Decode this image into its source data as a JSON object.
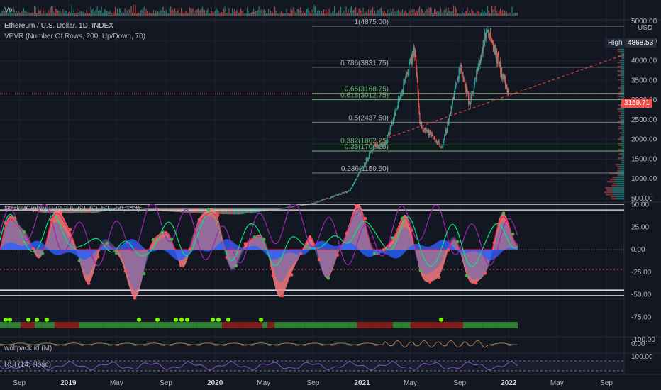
{
  "header": {
    "vol_label": "Vol",
    "symbol": "Ethereum / U.S. Dollar, 1D, INDEX",
    "indicator_vpvr": "VPVR (Number Of Rows, 200, Up/Down, 70)",
    "indicator_mcb": "MarketCipher B (2,2,6, 60, 60, 53, -60, -53)",
    "indicator_wolfpack": "wolfpack id (M)",
    "indicator_rsi": "RSI (14, close)"
  },
  "currency": "USD",
  "high_tag": {
    "label": "High",
    "value": "4868.53"
  },
  "last_price": "3159.71",
  "colors": {
    "background": "#131722",
    "grid": "#1e222d",
    "text": "#b2b5be",
    "up": "#26a69a",
    "down": "#ef5350",
    "fib_green": "#66bb6a",
    "trendline": "#e53935",
    "mcb_pink": "#f77c80",
    "mcb_blue": "#2962ff",
    "mcb_green": "#00e676",
    "mcb_purple": "#9c27b0",
    "rsi": "#7e57c2",
    "high_tag_bg": "#1e2538",
    "last_price_bg": "#ef5350"
  },
  "chart_data": [
    {
      "type": "candlestick",
      "title": "Ethereum / U.S. Dollar, 1D, INDEX",
      "x_tick_labels": [
        "Sep",
        "2019",
        "May",
        "Sep",
        "2020",
        "May",
        "Sep",
        "2021",
        "May",
        "Sep",
        "2022",
        "May",
        "Sep"
      ],
      "y_tick_labels": [
        "5000.00",
        "4500.00",
        "4000.00",
        "3500.00",
        "3000.00",
        "2500.00",
        "2000.00",
        "1500.00",
        "1000.00",
        "500.00"
      ],
      "ylim": [
        500,
        5000
      ],
      "price_path": {
        "dates": [
          "2018-08",
          "2018-11",
          "2019-03",
          "2019-06",
          "2019-09",
          "2019-12",
          "2020-03",
          "2020-06",
          "2020-09",
          "2020-12",
          "2021-01",
          "2021-02",
          "2021-03",
          "2021-05-12",
          "2021-05-25",
          "2021-07-20",
          "2021-09-03",
          "2021-09-25",
          "2021-11-10",
          "2021-12-05",
          "2021-12-31"
        ],
        "values": [
          300,
          150,
          140,
          300,
          190,
          130,
          110,
          230,
          380,
          700,
          1300,
          1800,
          1900,
          4300,
          2400,
          1800,
          3900,
          2900,
          4868,
          4000,
          3160
        ]
      },
      "fibonacci_levels": [
        {
          "label": "1(4875.00)",
          "value": 4875.0
        },
        {
          "label": "0.786(3831.75)",
          "value": 3831.75
        },
        {
          "label": "0.65(3168.75)",
          "value": 3168.75
        },
        {
          "label": "0.618(3012.75)",
          "value": 3012.75
        },
        {
          "label": "0.5(2437.50)",
          "value": 2437.5
        },
        {
          "label": "0.382(1862.25)",
          "value": 1862.25
        },
        {
          "label": "0.35(1706.25)",
          "value": 1706.25
        },
        {
          "label": "0.236(1150.50)",
          "value": 1150.5
        }
      ],
      "high": 4868.53,
      "last": 3159.71
    },
    {
      "type": "area",
      "title": "MarketCipher B (2,2,6, 60, 60, 53, -60, -53)",
      "y_tick_labels": [
        "50.00",
        "25.00",
        "0.00",
        "-25.00",
        "-50.00",
        "-75.00",
        "-100.00"
      ],
      "ylim": [
        -100,
        60
      ],
      "reference_lines": [
        60,
        53,
        0,
        -53,
        -60
      ]
    },
    {
      "type": "line",
      "title": "wolfpack id (M)",
      "y_tick_labels": [
        "0.00"
      ]
    },
    {
      "type": "line",
      "title": "RSI (14, close)",
      "y_tick_labels": [
        "100.00"
      ]
    }
  ]
}
